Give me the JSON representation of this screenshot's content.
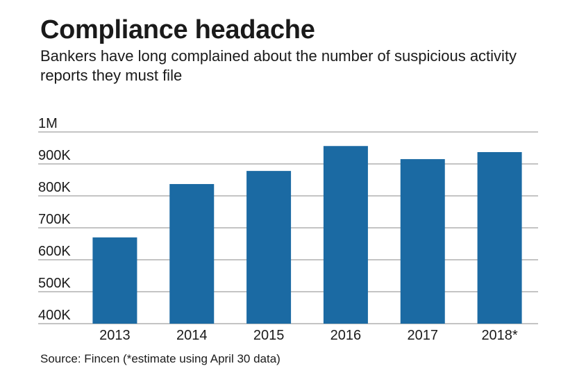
{
  "title": "Compliance headache",
  "subtitle": "Bankers have long complained about the number of suspicious activity reports they must file",
  "source": "Source: Fincen (*estimate using April 30 data)",
  "colors": {
    "bar": "#1b6aa3",
    "grid": "#8a8a8a",
    "text": "#1a1a1a"
  },
  "chart_data": {
    "type": "bar",
    "categories": [
      "2013",
      "2014",
      "2015",
      "2016",
      "2017",
      "2018*"
    ],
    "values": [
      670000,
      837000,
      878000,
      956000,
      915000,
      937000
    ],
    "y_ticks": [
      400000,
      500000,
      600000,
      700000,
      800000,
      900000,
      1000000
    ],
    "y_tick_labels": [
      "400K",
      "500K",
      "600K",
      "700K",
      "800K",
      "900K",
      "1M"
    ],
    "ylim": [
      400000,
      1000000
    ],
    "grid": true,
    "legend": "none"
  }
}
